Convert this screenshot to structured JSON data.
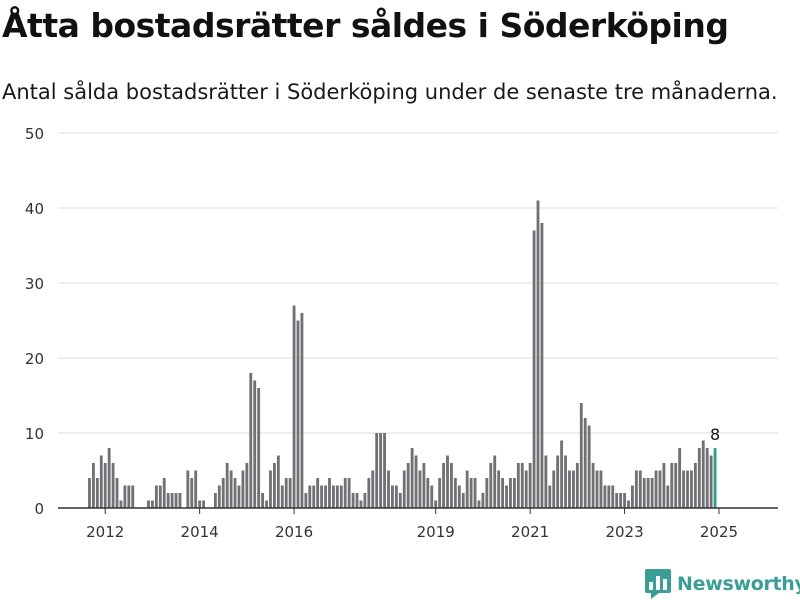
{
  "header": {
    "title": "Åtta bostadsrätter såldes i Söderköping",
    "subtitle": "Antal sålda bostadsrätter i Söderköping under de senaste tre månaderna."
  },
  "brand": {
    "name": "Newsworthy",
    "logo_icon": "bar-chart-speech-bubble-icon",
    "color": "#3a9e96"
  },
  "colors": {
    "bar": "#707075",
    "highlight": "#2a9d95",
    "grid": "#dedede",
    "axis": "#333333"
  },
  "chart_data": {
    "type": "bar",
    "x_axis": "time (months)",
    "x_range": [
      2011.0,
      2026.25
    ],
    "ylim": [
      0,
      50
    ],
    "yticks": [
      0,
      10,
      20,
      30,
      40,
      50
    ],
    "xticks": [
      "2012",
      "2014",
      "2016",
      "2019",
      "2021",
      "2023",
      "2025"
    ],
    "xtick_positions": [
      2012.0,
      2014.0,
      2016.0,
      2019.0,
      2021.0,
      2023.0,
      2025.0
    ],
    "grid": true,
    "legend": "none",
    "start": "2011-09",
    "values": [
      4,
      6,
      4,
      7,
      6,
      8,
      6,
      4,
      1,
      3,
      3,
      3,
      0,
      0,
      0,
      1,
      1,
      3,
      3,
      4,
      2,
      2,
      2,
      2,
      0,
      5,
      4,
      5,
      1,
      1,
      0,
      0,
      2,
      3,
      4,
      6,
      5,
      4,
      3,
      5,
      6,
      18,
      17,
      16,
      2,
      1,
      5,
      6,
      7,
      3,
      4,
      4,
      27,
      25,
      26,
      2,
      3,
      3,
      4,
      3,
      3,
      4,
      3,
      3,
      3,
      4,
      4,
      2,
      2,
      1,
      2,
      4,
      5,
      10,
      10,
      10,
      5,
      3,
      3,
      2,
      5,
      6,
      8,
      7,
      5,
      6,
      4,
      3,
      1,
      4,
      6,
      7,
      6,
      4,
      3,
      2,
      5,
      4,
      4,
      1,
      2,
      4,
      6,
      7,
      5,
      4,
      3,
      4,
      4,
      6,
      6,
      5,
      6,
      37,
      41,
      38,
      7,
      3,
      5,
      7,
      9,
      7,
      5,
      5,
      6,
      14,
      12,
      11,
      6,
      5,
      5,
      3,
      3,
      3,
      2,
      2,
      2,
      1,
      3,
      5,
      5,
      4,
      4,
      4,
      5,
      5,
      6,
      3,
      6,
      6,
      8,
      5,
      5,
      5,
      6,
      8,
      9,
      8,
      7,
      8
    ],
    "highlight_last": true,
    "last_value_label": "8"
  }
}
